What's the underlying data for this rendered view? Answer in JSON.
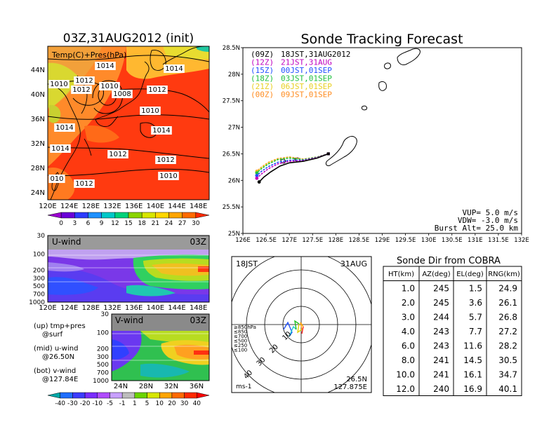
{
  "map_panel": {
    "title": "03Z,31AUG2012 (init)",
    "field_label": "Temp(C)+Pres(hPa)",
    "isobars": [
      "1014",
      "1014",
      "1010",
      "1012",
      "1012",
      "1010",
      "1008",
      "1012",
      "1010",
      "1014",
      "1014",
      "1014",
      "1012",
      "1012",
      "1010",
      "010",
      "1012"
    ],
    "lon_ticks": [
      "120E",
      "124E",
      "128E",
      "132E",
      "136E",
      "140E",
      "144E",
      "148E"
    ],
    "lat_ticks": [
      "44N",
      "40N",
      "36N",
      "32N",
      "28N",
      "24N"
    ],
    "colorbar_ticks": [
      "0",
      "3",
      "6",
      "9",
      "12",
      "15",
      "18",
      "21",
      "24",
      "27",
      "30"
    ],
    "colorbar_colors": [
      "#9b00d0",
      "#6a00d8",
      "#2c3cff",
      "#1e90ff",
      "#00c8c8",
      "#00d27a",
      "#8ad400",
      "#d7e600",
      "#ffd700",
      "#ffa500",
      "#ff6a00",
      "#ff2a00"
    ]
  },
  "u_panel": {
    "label": "U-wind",
    "time": "03Z",
    "y_ticks": [
      "30",
      "100",
      "200",
      "300",
      "500",
      "700",
      "1000"
    ],
    "x_ticks": [
      "120E",
      "124E",
      "128E",
      "132E",
      "136E",
      "140E",
      "144E",
      "148E"
    ]
  },
  "v_panel": {
    "label": "V-wind",
    "time": "03Z",
    "y_ticks": [
      "30",
      "100",
      "200",
      "300",
      "500",
      "700",
      "1000"
    ],
    "x_ticks": [
      "24N",
      "28N",
      "32N",
      "36N"
    ]
  },
  "side_notes": [
    "(up) tmp+pres",
    "@surf",
    "(mid) u-wind",
    "@26.50N",
    "(bot) v-wind",
    "@127.84E"
  ],
  "wind_colorbar": {
    "ticks": [
      "-40",
      "-30",
      "-20",
      "-10",
      "-5",
      "-1",
      "1",
      "5",
      "10",
      "20",
      "30",
      "40"
    ],
    "colors": [
      "#00a8a8",
      "#1e6eff",
      "#3c3cff",
      "#7a2cff",
      "#b04cff",
      "#c8a0ff",
      "#bdbdbd",
      "#6ad400",
      "#d7e600",
      "#ffa500",
      "#ff6a00",
      "#ff2a00"
    ]
  },
  "track_panel": {
    "title": "Sonde Tracking Forecast",
    "legend": [
      {
        "run": "(09Z)",
        "launch": "18JST,31AUG2012",
        "color": "#000000"
      },
      {
        "run": "(12Z)",
        "launch": "21JST,31AUG",
        "color": "#c000c0"
      },
      {
        "run": "(15Z)",
        "launch": "00JST,01SEP",
        "color": "#2050ff"
      },
      {
        "run": "(18Z)",
        "launch": "03JST,01SEP",
        "color": "#20c040"
      },
      {
        "run": "(21Z)",
        "launch": "06JST,01SEP",
        "color": "#e8d020"
      },
      {
        "run": "(00Z)",
        "launch": "09JST,01SEP",
        "color": "#ff8c20"
      }
    ],
    "vup": "VUP=  5.0  m/s",
    "vdw": "VDW= -3.0  m/s",
    "burst": "Burst Alt=  25.0  km",
    "lon_ticks": [
      "126E",
      "126.5E",
      "127E",
      "127.5E",
      "128E",
      "128.5E",
      "129E",
      "129.5E",
      "130E",
      "130.5E",
      "131E",
      "131.5E",
      "132E"
    ],
    "lat_ticks": [
      "28.5N",
      "28N",
      "27.5N",
      "27N",
      "26.5N",
      "26N",
      "25.5N",
      "25N"
    ]
  },
  "chart_data": {
    "type": "line",
    "title": "Sonde Tracking Forecast",
    "xlim": [
      126,
      132
    ],
    "ylim": [
      25,
      28.5
    ],
    "series": [
      {
        "name": "(09Z) 18JST,31AUG2012",
        "x": [
          127.84,
          127.6,
          127.3,
          127.0,
          126.8,
          126.6,
          126.45,
          126.35
        ],
        "y": [
          26.5,
          26.42,
          26.36,
          26.33,
          26.27,
          26.16,
          26.06,
          25.97
        ]
      },
      {
        "name": "(12Z) 21JST,31AUG",
        "x": [
          127.84,
          127.6,
          127.3,
          127.0,
          126.75,
          126.55,
          126.4,
          126.3
        ],
        "y": [
          26.5,
          26.43,
          26.37,
          26.36,
          26.31,
          26.22,
          26.12,
          26.04
        ]
      },
      {
        "name": "(15Z) 00JST,01SEP",
        "x": [
          127.84,
          127.6,
          127.3,
          127.0,
          126.75,
          126.55,
          126.4,
          126.3
        ],
        "y": [
          26.5,
          26.43,
          26.38,
          26.38,
          26.34,
          26.26,
          26.17,
          26.09
        ]
      },
      {
        "name": "(18Z) 03JST,01SEP",
        "x": [
          127.84,
          127.6,
          127.3,
          127.0,
          126.75,
          126.55,
          126.4,
          126.3
        ],
        "y": [
          26.5,
          26.44,
          26.39,
          26.42,
          26.39,
          26.31,
          26.22,
          26.14
        ]
      },
      {
        "name": "(21Z) 06JST,01SEP",
        "x": [
          127.84,
          127.6,
          127.3,
          127.0,
          126.75,
          126.55,
          126.4,
          126.3
        ],
        "y": [
          26.5,
          26.44,
          26.39,
          26.43,
          26.4,
          26.33,
          26.24,
          26.16
        ]
      },
      {
        "name": "(00Z) 09JST,01SEP",
        "x": [
          127.84,
          127.6,
          127.3,
          127.0,
          126.75,
          126.55,
          126.4,
          126.3
        ],
        "y": [
          26.5,
          26.44,
          26.4,
          26.44,
          26.41,
          26.34,
          26.25,
          26.17
        ]
      }
    ]
  },
  "polar_panel": {
    "time_label": "18JST",
    "date_label": "31AUG",
    "ring_labels": [
      "10",
      "20",
      "30",
      "40"
    ],
    "level_legend": [
      {
        "label": "≥850hPa",
        "color": "#ff2020"
      },
      {
        "label": "≤850",
        "color": "#ffa000"
      },
      {
        "label": "≤700",
        "color": "#e0d000"
      },
      {
        "label": "≤500",
        "color": "#20c020"
      },
      {
        "label": "≤250",
        "color": "#20c8c8"
      },
      {
        "label": "≤100",
        "color": "#2050ff"
      }
    ],
    "unit": "ms-1",
    "lat": "26.5N",
    "lon": "127.875E"
  },
  "sonde_table": {
    "title": "Sonde Dir from COBRA",
    "headers": [
      "HT(km)",
      "AZ(deg)",
      "EL(deg)",
      "RNG(km)"
    ],
    "rows": [
      [
        "1.0",
        "245",
        "1.5",
        "24.9"
      ],
      [
        "2.0",
        "245",
        "3.6",
        "26.1"
      ],
      [
        "3.0",
        "244",
        "5.7",
        "26.8"
      ],
      [
        "4.0",
        "243",
        "7.7",
        "27.2"
      ],
      [
        "6.0",
        "243",
        "11.6",
        "28.2"
      ],
      [
        "8.0",
        "241",
        "14.5",
        "30.5"
      ],
      [
        "10.0",
        "241",
        "16.1",
        "34.7"
      ],
      [
        "12.0",
        "240",
        "16.9",
        "40.1"
      ]
    ]
  }
}
